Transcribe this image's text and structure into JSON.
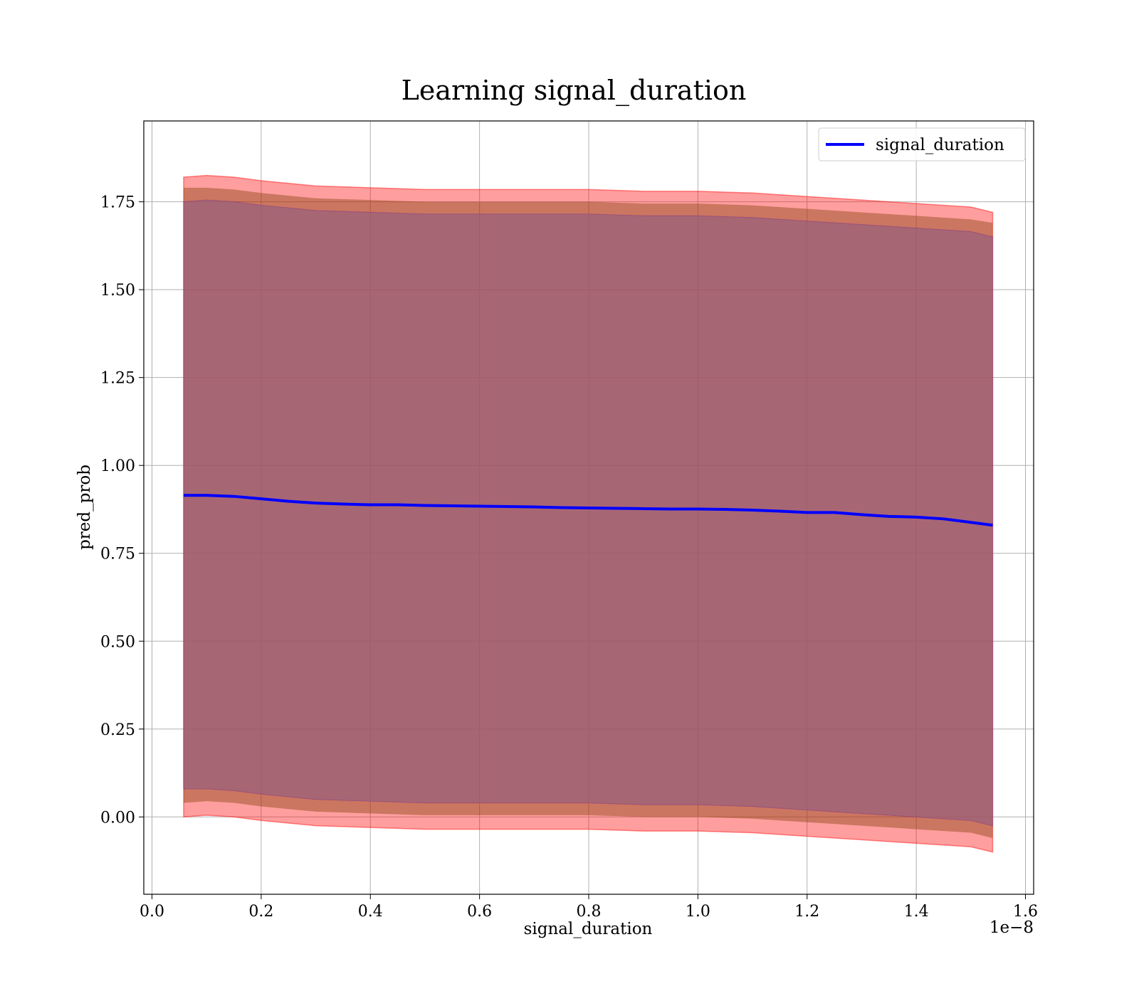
{
  "chart_data": {
    "type": "line",
    "title": "Learning signal_duration",
    "xlabel": "signal_duration",
    "ylabel": "pred_prob",
    "x_offset_label": "1e−8",
    "xlim": [
      -0.015,
      1.615
    ],
    "ylim": [
      -0.22,
      1.98
    ],
    "x_ticks": [
      0.0,
      0.2,
      0.4,
      0.6,
      0.8,
      1.0,
      1.2,
      1.4,
      1.6
    ],
    "x_tick_labels": [
      "0.0",
      "0.2",
      "0.4",
      "0.6",
      "0.8",
      "1.0",
      "1.2",
      "1.4",
      "1.6"
    ],
    "y_ticks": [
      0.0,
      0.25,
      0.5,
      0.75,
      1.0,
      1.25,
      1.5,
      1.75
    ],
    "y_tick_labels": [
      "0.00",
      "0.25",
      "0.50",
      "0.75",
      "1.00",
      "1.25",
      "1.50",
      "1.75"
    ],
    "grid": true,
    "legend_position": "top-right",
    "colors": {
      "line": "#0000ff",
      "outer_band": "#ff0000",
      "inner_band": "#8b4513",
      "purple_band": "#7b2a8b",
      "fill": "#a07078",
      "grid": "#b0b0b0"
    },
    "series": [
      {
        "name": "signal_duration",
        "x": [
          0.058,
          0.1,
          0.15,
          0.2,
          0.25,
          0.3,
          0.35,
          0.4,
          0.45,
          0.5,
          0.55,
          0.6,
          0.65,
          0.7,
          0.75,
          0.8,
          0.85,
          0.9,
          0.95,
          1.0,
          1.05,
          1.1,
          1.15,
          1.2,
          1.25,
          1.3,
          1.35,
          1.4,
          1.45,
          1.5,
          1.54
        ],
        "y": [
          0.915,
          0.915,
          0.912,
          0.905,
          0.898,
          0.893,
          0.89,
          0.888,
          0.888,
          0.886,
          0.885,
          0.884,
          0.883,
          0.882,
          0.88,
          0.879,
          0.878,
          0.877,
          0.876,
          0.876,
          0.875,
          0.873,
          0.87,
          0.866,
          0.866,
          0.86,
          0.855,
          0.853,
          0.848,
          0.838,
          0.83
        ]
      }
    ],
    "band": {
      "x": [
        0.058,
        0.1,
        0.15,
        0.2,
        0.3,
        0.4,
        0.5,
        0.6,
        0.7,
        0.8,
        0.9,
        1.0,
        1.1,
        1.2,
        1.3,
        1.4,
        1.5,
        1.54
      ],
      "upper_outer": [
        1.82,
        1.825,
        1.82,
        1.81,
        1.795,
        1.79,
        1.785,
        1.785,
        1.785,
        1.785,
        1.78,
        1.78,
        1.775,
        1.765,
        1.755,
        1.745,
        1.735,
        1.72
      ],
      "upper_mid": [
        1.79,
        1.79,
        1.785,
        1.775,
        1.76,
        1.755,
        1.75,
        1.75,
        1.75,
        1.75,
        1.745,
        1.745,
        1.74,
        1.73,
        1.72,
        1.71,
        1.7,
        1.69
      ],
      "upper_inner": [
        1.75,
        1.755,
        1.75,
        1.74,
        1.725,
        1.72,
        1.715,
        1.715,
        1.715,
        1.715,
        1.71,
        1.71,
        1.705,
        1.695,
        1.685,
        1.675,
        1.665,
        1.65
      ],
      "lower_inner": [
        0.08,
        0.08,
        0.075,
        0.065,
        0.05,
        0.045,
        0.04,
        0.04,
        0.04,
        0.04,
        0.035,
        0.035,
        0.03,
        0.02,
        0.01,
        0.0,
        -0.01,
        -0.025
      ],
      "lower_mid": [
        0.04,
        0.045,
        0.04,
        0.03,
        0.015,
        0.01,
        0.005,
        0.005,
        0.005,
        0.005,
        0.0,
        0.0,
        -0.005,
        -0.015,
        -0.025,
        -0.035,
        -0.045,
        -0.06
      ],
      "lower_outer": [
        0.0,
        0.005,
        0.0,
        -0.01,
        -0.025,
        -0.03,
        -0.035,
        -0.035,
        -0.035,
        -0.035,
        -0.04,
        -0.04,
        -0.045,
        -0.055,
        -0.065,
        -0.075,
        -0.085,
        -0.1
      ]
    }
  }
}
